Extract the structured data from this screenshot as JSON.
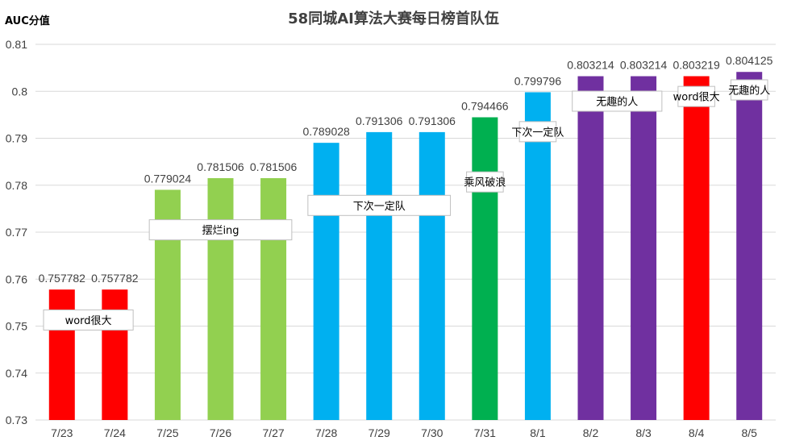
{
  "chart_data": {
    "type": "bar",
    "title": "58同城AI算法大赛每日榜首队伍",
    "ylabel": "AUC分值",
    "xlabel": "",
    "ylim": [
      0.73,
      0.81
    ],
    "yticks": [
      "0.73",
      "0.74",
      "0.75",
      "0.76",
      "0.77",
      "0.78",
      "0.79",
      "0.8",
      "0.81"
    ],
    "grid": true,
    "categories": [
      "7/23",
      "7/24",
      "7/25",
      "7/26",
      "7/27",
      "7/28",
      "7/29",
      "7/30",
      "7/31",
      "8/1",
      "8/2",
      "8/3",
      "8/4",
      "8/5"
    ],
    "values": [
      0.757782,
      0.757782,
      0.779024,
      0.781506,
      0.781506,
      0.789028,
      0.791306,
      0.791306,
      0.794466,
      0.799796,
      0.803214,
      0.803214,
      0.803219,
      0.804125
    ],
    "value_labels": [
      "0.757782",
      "0.757782",
      "0.779024",
      "0.781506",
      "0.781506",
      "0.789028",
      "0.791306",
      "0.791306",
      "0.794466",
      "0.799796",
      "0.803214",
      "0.803214",
      "0.803219",
      "0.804125"
    ],
    "bar_colors": [
      "#ff0000",
      "#ff0000",
      "#92d050",
      "#92d050",
      "#92d050",
      "#00b0f0",
      "#00b0f0",
      "#00b0f0",
      "#00b050",
      "#00b0f0",
      "#7030a0",
      "#7030a0",
      "#ff0000",
      "#7030a0"
    ],
    "team_labels": [
      {
        "text": "word很大",
        "from": 0,
        "to": 1,
        "y": 0.7513
      },
      {
        "text": "摆烂ing",
        "from": 2,
        "to": 4,
        "y": 0.7705
      },
      {
        "text": "下次一定队",
        "from": 5,
        "to": 7,
        "y": 0.7757
      },
      {
        "text": "乘风破浪",
        "from": 8,
        "to": 8,
        "y": 0.7807
      },
      {
        "text": "下次一定队",
        "from": 9,
        "to": 9,
        "y": 0.7914
      },
      {
        "text": "无趣的人",
        "from": 10,
        "to": 11,
        "y": 0.7979
      },
      {
        "text": "word很大",
        "from": 12,
        "to": 12,
        "y": 0.7989
      },
      {
        "text": "无趣的人",
        "from": 13,
        "to": 13,
        "y": 0.8003
      }
    ]
  }
}
